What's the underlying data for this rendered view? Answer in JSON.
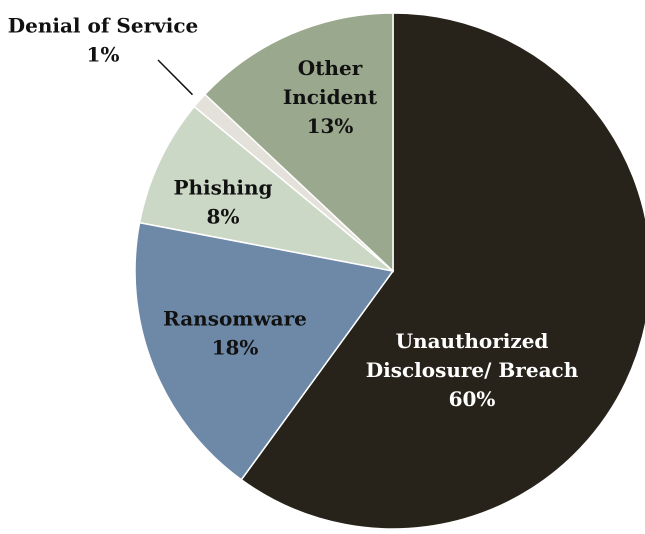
{
  "chart_data": {
    "type": "pie",
    "title": "",
    "start_angle_deg": 0,
    "direction": "clockwise",
    "slices": [
      {
        "label_lines": [
          "Unauthorized",
          "Disclosure/ Breach"
        ],
        "value_label": "60%",
        "value": 60,
        "color": "#27221a",
        "text_color": "#ffffff"
      },
      {
        "label_lines": [
          "Ransomware"
        ],
        "value_label": "18%",
        "value": 18,
        "color": "#6d89a7",
        "text_color": "#111111"
      },
      {
        "label_lines": [
          "Phishing"
        ],
        "value_label": "8%",
        "value": 8,
        "color": "#ccd8c6",
        "text_color": "#111111"
      },
      {
        "label_lines": [
          "Denial of Service"
        ],
        "value_label": "1%",
        "value": 1,
        "color": "#e4e1da",
        "text_color": "#111111"
      },
      {
        "label_lines": [
          "Other",
          "Incident"
        ],
        "value_label": "13%",
        "value": 13,
        "color": "#9aa88d",
        "text_color": "#111111"
      }
    ]
  }
}
